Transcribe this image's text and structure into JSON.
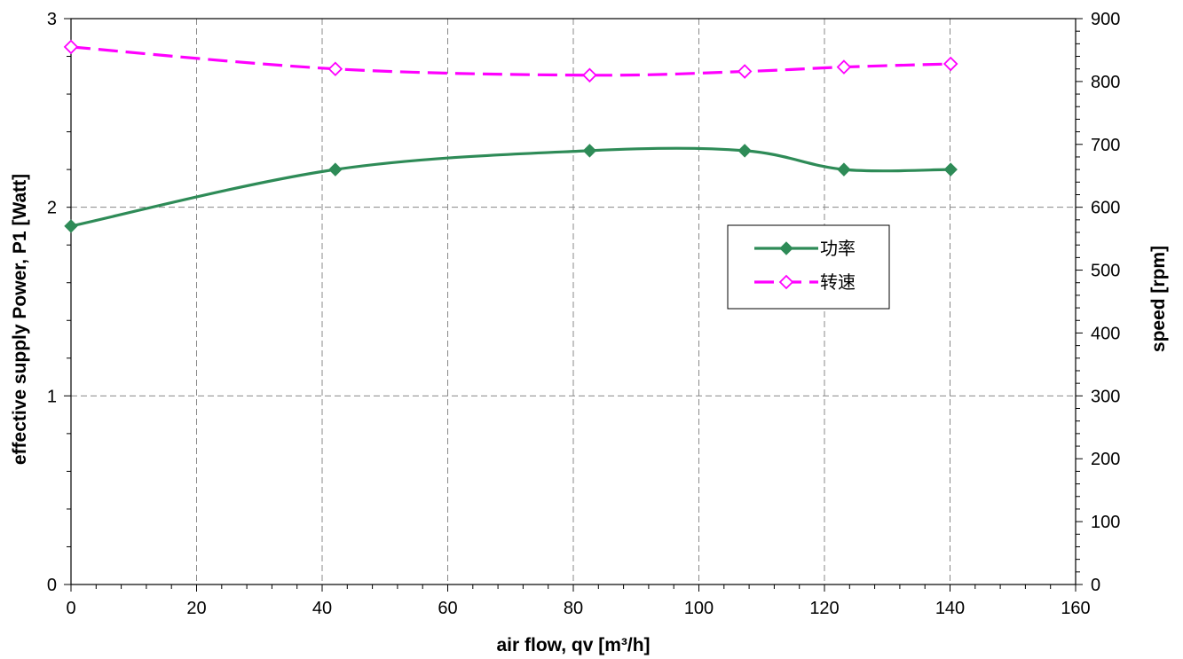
{
  "chart_data": {
    "type": "line",
    "xlabel": "air flow, qv [m³/h]",
    "ylabel": "effective supply Power, P1 [Watt]",
    "y2label": "speed [rpm]",
    "xlim": [
      0,
      160
    ],
    "ylim": [
      0,
      3
    ],
    "y2lim": [
      0,
      900
    ],
    "x_ticks": [
      "0",
      "20",
      "40",
      "60",
      "80",
      "100",
      "120",
      "140",
      "160"
    ],
    "y_ticks": [
      "0",
      "1",
      "2",
      "3"
    ],
    "y2_ticks": [
      "0",
      "100",
      "200",
      "300",
      "400",
      "500",
      "600",
      "700",
      "800",
      "900"
    ],
    "grid": true,
    "legend_position": "right-center",
    "series": [
      {
        "name": "功率",
        "axis": "left",
        "color": "#2e8b57",
        "line_style": "solid",
        "marker": "filled-diamond",
        "x": [
          0,
          42.1,
          82.6,
          107.3,
          123.1,
          140.1
        ],
        "y": [
          1.9,
          2.2,
          2.3,
          2.3,
          2.2,
          2.2
        ]
      },
      {
        "name": "转速",
        "axis": "right",
        "color": "#ff00ff",
        "line_style": "dashed",
        "marker": "open-diamond",
        "x": [
          0,
          42.1,
          82.6,
          107.3,
          123.1,
          140.1
        ],
        "y": [
          855,
          820,
          810,
          816,
          823,
          828
        ]
      }
    ]
  }
}
